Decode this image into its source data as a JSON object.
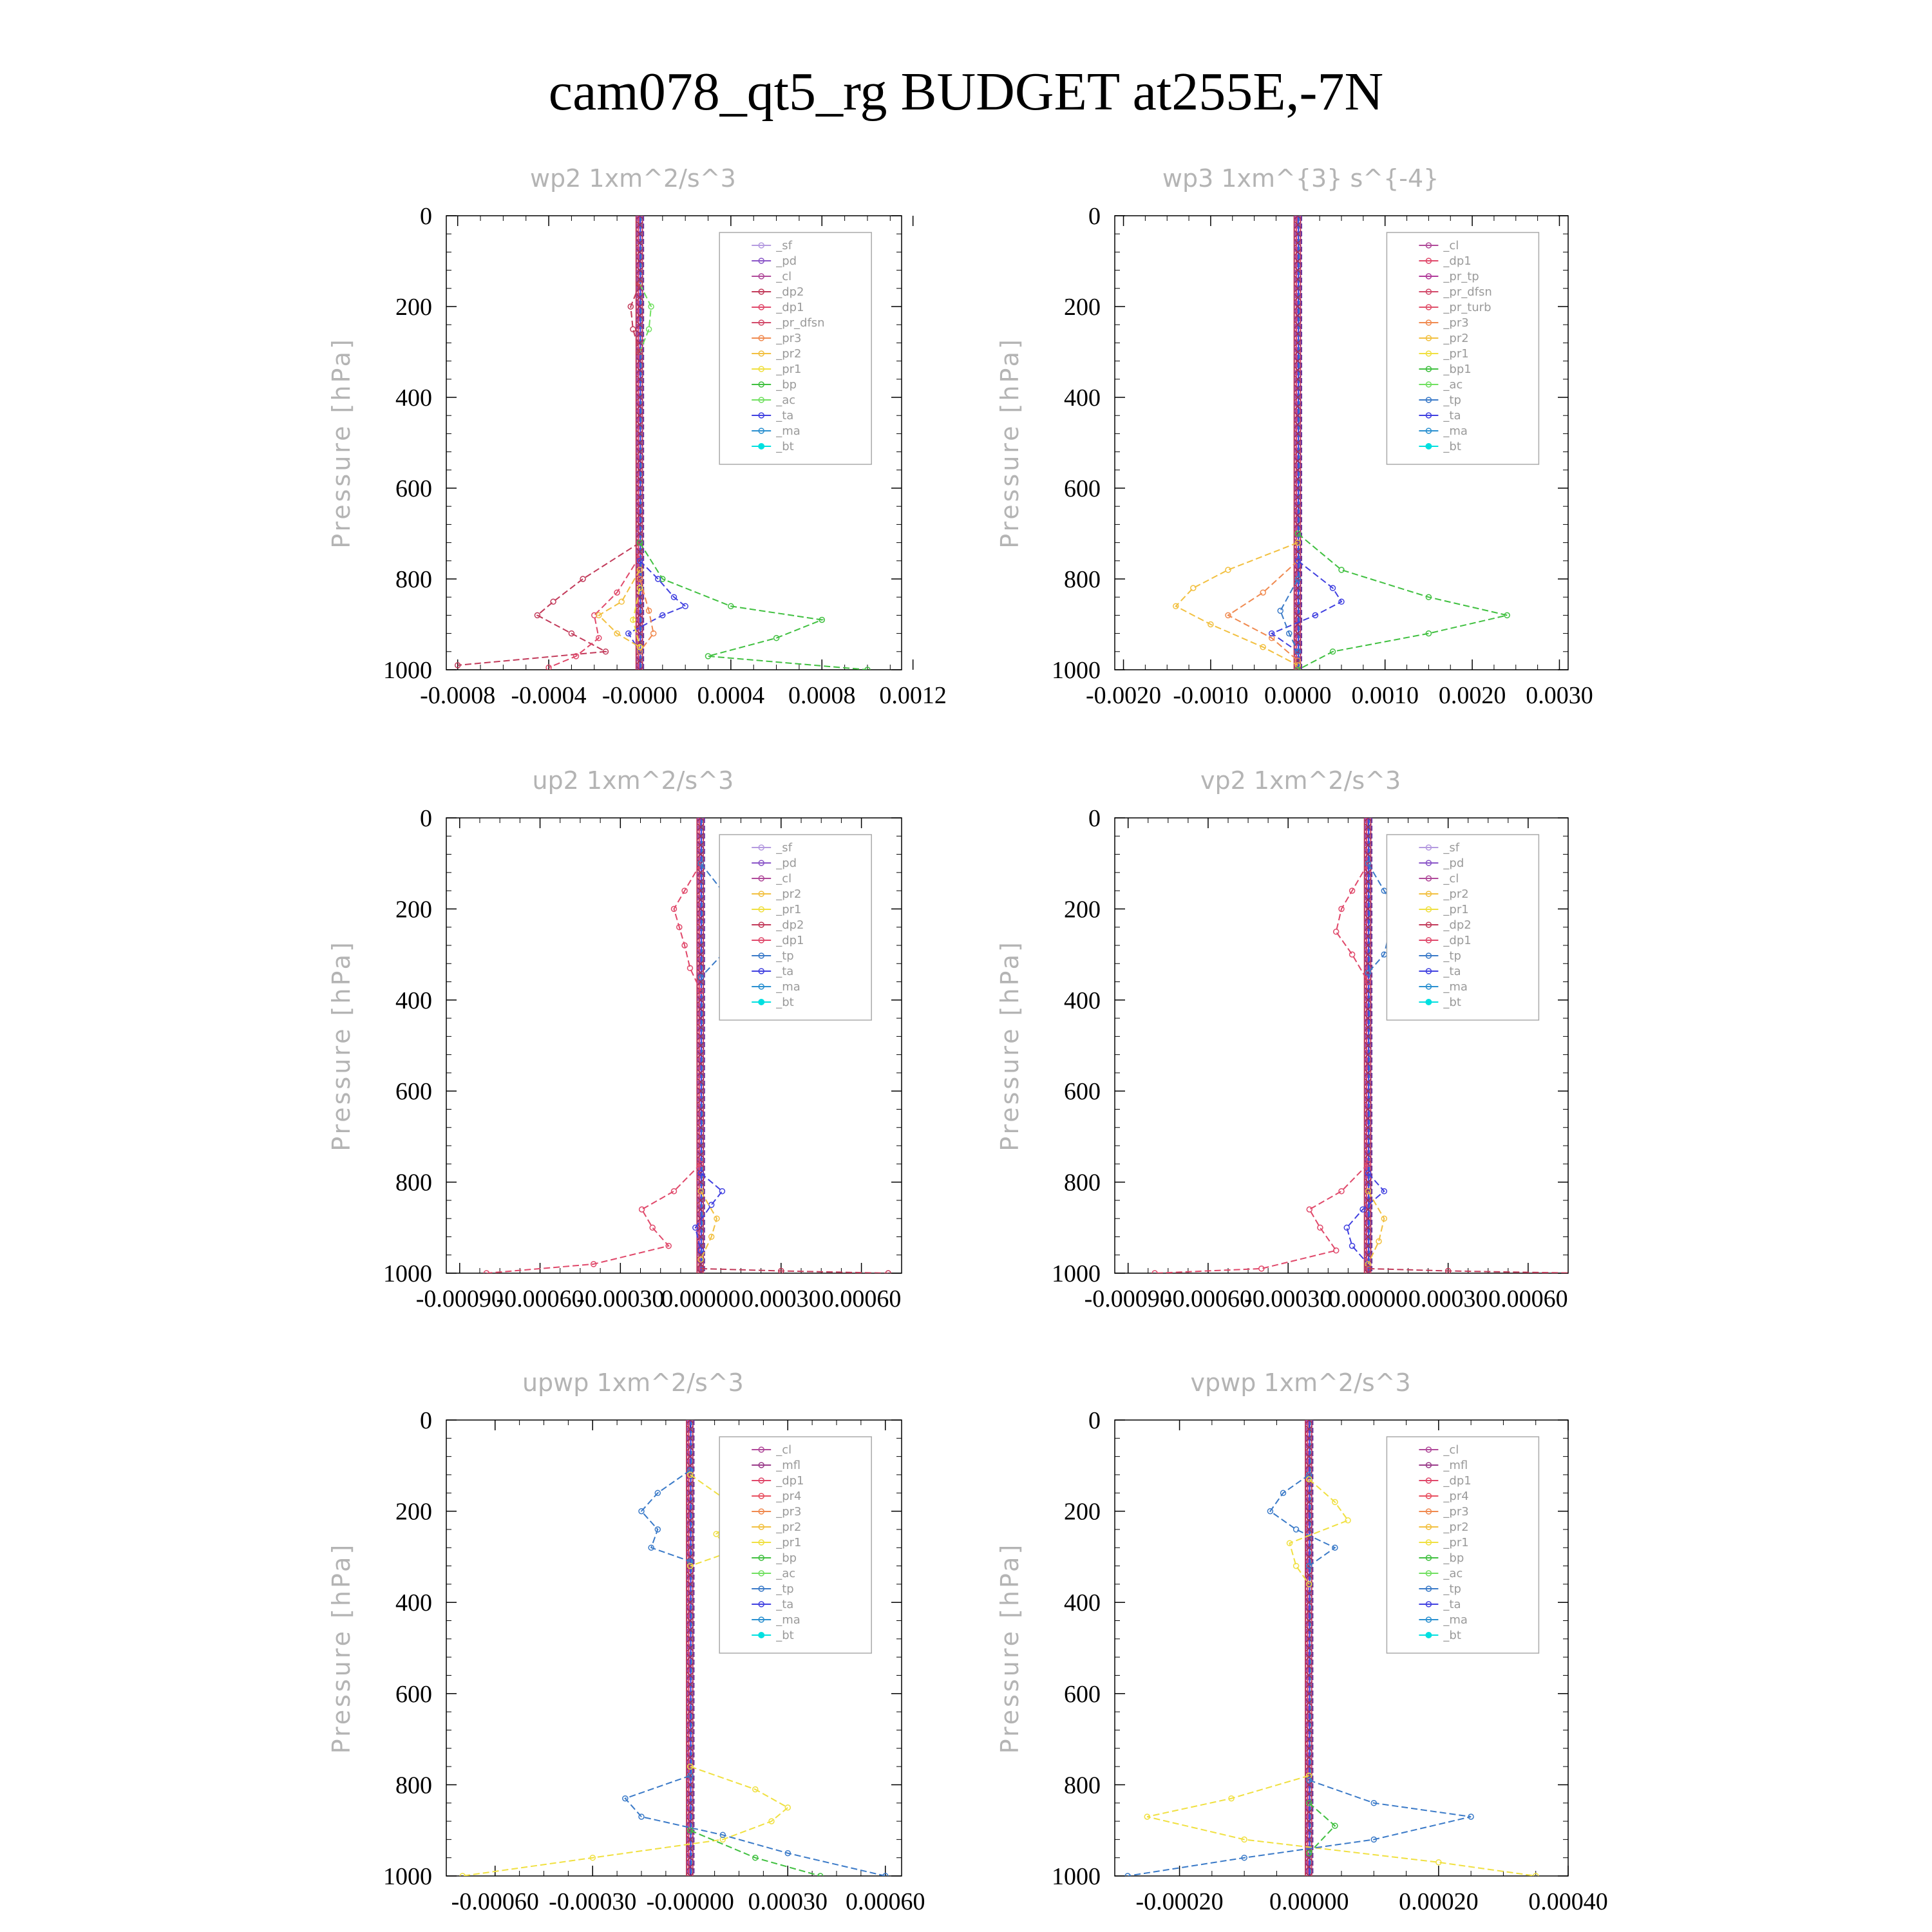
{
  "title": "cam078_qt5_rg  BUDGET at255E,-7N",
  "colors": {
    "_sf": "#b59be0",
    "_pd": "#8a55c8",
    "_cl": "#b04a9a",
    "_mfl": "#9a3c8a",
    "_dp2": "#c23a5a",
    "_dp1": "#e0486a",
    "_pr_tp": "#b03a9a",
    "_pr_dfsn": "#d24a6a",
    "_pr_turb": "#e0506a",
    "_pr4": "#e85060",
    "_pr3": "#f08a50",
    "_pr2": "#f2c040",
    "_pr1": "#f0e040",
    "_bp": "#40c040",
    "_bp1": "#40c040",
    "_ac": "#70e060",
    "_tp": "#3a7ac8",
    "_ta": "#4040e0",
    "_ma": "#2a90d0",
    "_bt": "#00e0e0"
  },
  "chart_data": [
    {
      "type": "line",
      "title": "wp2   1xm^2/s^3",
      "ylabel": "Pressure [hPa]",
      "ylim": [
        0,
        1000
      ],
      "xlim": [
        -0.00085,
        0.00115
      ],
      "xticks": [
        -0.0008,
        -0.0004,
        0.0,
        0.0004,
        0.0008,
        0.0012
      ],
      "xtick_labels": [
        "-0.0008",
        "-0.0004",
        "-0.0000",
        "0.0004",
        "0.0008",
        "0.0012"
      ],
      "yticks": [
        0,
        200,
        400,
        600,
        800,
        1000
      ],
      "ytick_labels": [
        "0",
        "200",
        "400",
        "600",
        "800",
        "1000"
      ],
      "legend": [
        "_sf",
        "_pd",
        "_cl",
        "_dp2",
        "_dp1",
        "_pr_dfsn",
        "_pr3",
        "_pr2",
        "_pr1",
        "_bp",
        "_ac",
        "_ta",
        "_ma",
        "_bt"
      ],
      "series": [
        {
          "name": "_dp2",
          "p": [
            720,
            800,
            850,
            880,
            920,
            960,
            990
          ],
          "v": [
            0,
            -0.00025,
            -0.00038,
            -0.00045,
            -0.0003,
            -0.00015,
            -0.0008
          ]
        },
        {
          "name": "_dp1",
          "p": [
            750,
            830,
            880,
            930,
            970,
            995
          ],
          "v": [
            0,
            -0.0001,
            -0.0002,
            -0.00018,
            -0.00028,
            -0.0004
          ]
        },
        {
          "name": "_bp",
          "p": [
            720,
            800,
            860,
            890,
            930,
            970,
            1000
          ],
          "v": [
            0,
            0.0001,
            0.0004,
            0.0008,
            0.0006,
            0.0003,
            0.001
          ]
        },
        {
          "name": "_ac",
          "p": [
            150,
            200,
            250,
            300
          ],
          "v": [
            0,
            5e-05,
            4e-05,
            0
          ]
        },
        {
          "name": "_ta",
          "p": [
            760,
            800,
            840,
            860,
            880,
            920,
            960
          ],
          "v": [
            0,
            8e-05,
            0.00015,
            0.0002,
            0.0001,
            -5e-05,
            0
          ]
        },
        {
          "name": "_pr2",
          "p": [
            780,
            850,
            880,
            920,
            950
          ],
          "v": [
            0,
            -8e-05,
            -0.00018,
            -0.0001,
            0
          ]
        },
        {
          "name": "_pr3",
          "p": [
            800,
            870,
            920,
            960
          ],
          "v": [
            0,
            4e-05,
            6e-05,
            0
          ]
        },
        {
          "name": "_pr1",
          "p": [
            820,
            890,
            950
          ],
          "v": [
            0,
            -3e-05,
            0
          ]
        },
        {
          "name": "_dp2",
          "p": [
            150,
            200,
            250,
            300
          ],
          "v": [
            0,
            -4e-05,
            -3e-05,
            0
          ]
        }
      ]
    },
    {
      "type": "line",
      "title": "wp3   1xm^{3} s^{-4}",
      "ylabel": "Pressure [hPa]",
      "ylim": [
        0,
        1000
      ],
      "xlim": [
        -0.0021,
        0.0031
      ],
      "xticks": [
        -0.002,
        -0.001,
        0.0,
        0.001,
        0.002,
        0.003
      ],
      "xtick_labels": [
        "-0.0020",
        "-0.0010",
        "0.0000",
        "0.0010",
        "0.0020",
        "0.0030"
      ],
      "yticks": [
        0,
        200,
        400,
        600,
        800,
        1000
      ],
      "ytick_labels": [
        "0",
        "200",
        "400",
        "600",
        "800",
        "1000"
      ],
      "legend": [
        "_cl",
        "_dp1",
        "_pr_tp",
        "_pr_dfsn",
        "_pr_turb",
        "_pr3",
        "_pr2",
        "_pr1",
        "_bp1",
        "_ac",
        "_tp",
        "_ta",
        "_ma",
        "_bt"
      ],
      "series": [
        {
          "name": "_pr2",
          "p": [
            720,
            780,
            820,
            860,
            900,
            950,
            990
          ],
          "v": [
            0,
            -0.0008,
            -0.0012,
            -0.0014,
            -0.001,
            -0.0004,
            0
          ]
        },
        {
          "name": "_pr3",
          "p": [
            760,
            830,
            880,
            930,
            980
          ],
          "v": [
            0,
            -0.0004,
            -0.0008,
            -0.0003,
            0
          ]
        },
        {
          "name": "_bp1",
          "p": [
            700,
            780,
            840,
            880,
            920,
            960,
            1000
          ],
          "v": [
            0,
            0.0005,
            0.0015,
            0.0024,
            0.0015,
            0.0004,
            0
          ]
        },
        {
          "name": "_ta",
          "p": [
            760,
            820,
            850,
            880,
            920,
            960
          ],
          "v": [
            0,
            0.0004,
            0.0005,
            0.0002,
            -0.0003,
            0
          ]
        },
        {
          "name": "_tp",
          "p": [
            800,
            870,
            920,
            960
          ],
          "v": [
            0,
            -0.0002,
            -0.0001,
            0
          ]
        }
      ]
    },
    {
      "type": "line",
      "title": "up2   1xm^2/s^3",
      "ylabel": "Pressure [hPa]",
      "ylim": [
        0,
        1000
      ],
      "xlim": [
        -0.00095,
        0.00075
      ],
      "xticks": [
        -0.0009,
        -0.0006,
        -0.0003,
        0.0,
        0.0003,
        0.0006
      ],
      "xtick_labels": [
        "-0.00090",
        "-0.00060",
        "-0.00030",
        "0.00000",
        "0.00030",
        "0.00060"
      ],
      "yticks": [
        0,
        200,
        400,
        600,
        800,
        1000
      ],
      "ytick_labels": [
        "0",
        "200",
        "400",
        "600",
        "800",
        "1000"
      ],
      "legend": [
        "_sf",
        "_pd",
        "_cl",
        "_pr2",
        "_pr1",
        "_dp2",
        "_dp1",
        "_tp",
        "_ta",
        "_ma",
        "_bt"
      ],
      "series": [
        {
          "name": "_dp1",
          "p": [
            100,
            160,
            200,
            240,
            280,
            330,
            380
          ],
          "v": [
            0,
            -6e-05,
            -0.0001,
            -8e-05,
            -6e-05,
            -4e-05,
            0
          ]
        },
        {
          "name": "_tp",
          "p": [
            100,
            160,
            200,
            250,
            300,
            350
          ],
          "v": [
            0,
            8e-05,
            0.00014,
            0.00012,
            8e-05,
            0
          ]
        },
        {
          "name": "_dp1",
          "p": [
            760,
            820,
            860,
            900,
            940,
            980,
            1000
          ],
          "v": [
            0,
            -0.0001,
            -0.00022,
            -0.00018,
            -0.00012,
            -0.0004,
            -0.0008
          ]
        },
        {
          "name": "_ta",
          "p": [
            780,
            820,
            850,
            900,
            950
          ],
          "v": [
            0,
            8e-05,
            4e-05,
            -2e-05,
            0
          ]
        },
        {
          "name": "_pr2",
          "p": [
            820,
            880,
            920,
            970
          ],
          "v": [
            0,
            6e-05,
            4e-05,
            0
          ]
        },
        {
          "name": "_dp2",
          "p": [
            990,
            995,
            1000
          ],
          "v": [
            0,
            0.0003,
            0.0007
          ]
        }
      ]
    },
    {
      "type": "line",
      "title": "vp2   1xm^2/s^3",
      "ylabel": "Pressure [hPa]",
      "ylim": [
        0,
        1000
      ],
      "xlim": [
        -0.00095,
        0.00075
      ],
      "xticks": [
        -0.0009,
        -0.0006,
        -0.0003,
        0.0,
        0.0003,
        0.0006
      ],
      "xtick_labels": [
        "-0.00090",
        "-0.00060",
        "-0.00030",
        "0.00000",
        "0.00030",
        "0.00060"
      ],
      "yticks": [
        0,
        200,
        400,
        600,
        800,
        1000
      ],
      "ytick_labels": [
        "0",
        "200",
        "400",
        "600",
        "800",
        "1000"
      ],
      "legend": [
        "_sf",
        "_pd",
        "_cl",
        "_pr2",
        "_pr1",
        "_dp2",
        "_dp1",
        "_tp",
        "_ta",
        "_ma",
        "_bt"
      ],
      "series": [
        {
          "name": "_dp1",
          "p": [
            100,
            160,
            200,
            250,
            300,
            360
          ],
          "v": [
            0,
            -6e-05,
            -0.0001,
            -0.00012,
            -6e-05,
            0
          ]
        },
        {
          "name": "_tp",
          "p": [
            100,
            160,
            200,
            250,
            300,
            340
          ],
          "v": [
            0,
            6e-05,
            0.0001,
            8e-05,
            6e-05,
            0
          ]
        },
        {
          "name": "_dp1",
          "p": [
            760,
            820,
            860,
            900,
            950,
            990,
            1000
          ],
          "v": [
            0,
            -0.0001,
            -0.00022,
            -0.00018,
            -0.00012,
            -0.0004,
            -0.0008
          ]
        },
        {
          "name": "_ta",
          "p": [
            780,
            820,
            860,
            900,
            940,
            980
          ],
          "v": [
            0,
            6e-05,
            -2e-05,
            -8e-05,
            -6e-05,
            0
          ]
        },
        {
          "name": "_pr2",
          "p": [
            820,
            880,
            930,
            980
          ],
          "v": [
            0,
            6e-05,
            4e-05,
            0
          ]
        },
        {
          "name": "_dp2",
          "p": [
            990,
            995,
            1000
          ],
          "v": [
            0,
            0.0003,
            0.0008
          ]
        }
      ]
    },
    {
      "type": "line",
      "title": "upwp   1xm^2/s^3",
      "ylabel": "Pressure [hPa]",
      "ylim": [
        0,
        1000
      ],
      "xlim": [
        -0.00075,
        0.00065
      ],
      "xticks": [
        -0.0006,
        -0.0003,
        0.0,
        0.0003,
        0.0006
      ],
      "xtick_labels": [
        "-0.00060",
        "-0.00030",
        "-0.00000",
        "0.00030",
        "0.00060"
      ],
      "yticks": [
        0,
        200,
        400,
        600,
        800,
        1000
      ],
      "ytick_labels": [
        "0",
        "200",
        "400",
        "600",
        "800",
        "1000"
      ],
      "legend": [
        "_cl",
        "_mfl",
        "_dp1",
        "_pr4",
        "_pr3",
        "_pr2",
        "_pr1",
        "_bp",
        "_ac",
        "_tp",
        "_ta",
        "_ma",
        "_bt"
      ],
      "series": [
        {
          "name": "_tp",
          "p": [
            110,
            160,
            200,
            240,
            280,
            310
          ],
          "v": [
            0,
            -0.0001,
            -0.00015,
            -0.0001,
            -0.00012,
            0
          ]
        },
        {
          "name": "_pr1",
          "p": [
            120,
            170,
            210,
            250,
            290,
            320
          ],
          "v": [
            0,
            0.0001,
            0.00015,
            8e-05,
            0.00012,
            0
          ]
        },
        {
          "name": "_pr1",
          "p": [
            760,
            810,
            850,
            880,
            920,
            960,
            1000
          ],
          "v": [
            0,
            0.0002,
            0.0003,
            0.00025,
            0.0001,
            -0.0003,
            -0.0007
          ]
        },
        {
          "name": "_tp",
          "p": [
            780,
            830,
            870,
            910,
            950,
            1000
          ],
          "v": [
            0,
            -0.0002,
            -0.00015,
            0.0001,
            0.0003,
            0.0006
          ]
        },
        {
          "name": "_bp",
          "p": [
            900,
            960,
            1000
          ],
          "v": [
            0,
            0.0002,
            0.0004
          ]
        }
      ]
    },
    {
      "type": "line",
      "title": "vpwp   1xm^2/s^3",
      "ylabel": "Pressure [hPa]",
      "ylim": [
        0,
        1000
      ],
      "xlim": [
        -0.0003,
        0.0004
      ],
      "xticks": [
        -0.0002,
        0.0,
        0.0002,
        0.0004
      ],
      "xtick_labels": [
        "-0.00020",
        "0.00000",
        "0.00020",
        "0.00040"
      ],
      "yticks": [
        0,
        200,
        400,
        600,
        800,
        1000
      ],
      "ytick_labels": [
        "0",
        "200",
        "400",
        "600",
        "800",
        "1000"
      ],
      "legend": [
        "_cl",
        "_mfl",
        "_dp1",
        "_pr4",
        "_pr3",
        "_pr2",
        "_pr1",
        "_bp",
        "_ac",
        "_tp",
        "_ta",
        "_ma",
        "_bt"
      ],
      "series": [
        {
          "name": "_tp",
          "p": [
            120,
            160,
            200,
            240,
            280,
            320
          ],
          "v": [
            0,
            -4e-05,
            -6e-05,
            -2e-05,
            4e-05,
            0
          ]
        },
        {
          "name": "_pr1",
          "p": [
            130,
            180,
            220,
            270,
            320,
            360
          ],
          "v": [
            0,
            4e-05,
            6e-05,
            -3e-05,
            -2e-05,
            0
          ]
        },
        {
          "name": "_pr1",
          "p": [
            780,
            830,
            870,
            920,
            970,
            1000
          ],
          "v": [
            0,
            -0.00012,
            -0.00025,
            -0.0001,
            0.0002,
            0.00035
          ]
        },
        {
          "name": "_tp",
          "p": [
            790,
            840,
            870,
            920,
            960,
            1000
          ],
          "v": [
            0,
            0.0001,
            0.00025,
            0.0001,
            -0.0001,
            -0.00028
          ]
        },
        {
          "name": "_bp",
          "p": [
            840,
            890,
            950
          ],
          "v": [
            0,
            4e-05,
            0
          ]
        }
      ]
    }
  ]
}
